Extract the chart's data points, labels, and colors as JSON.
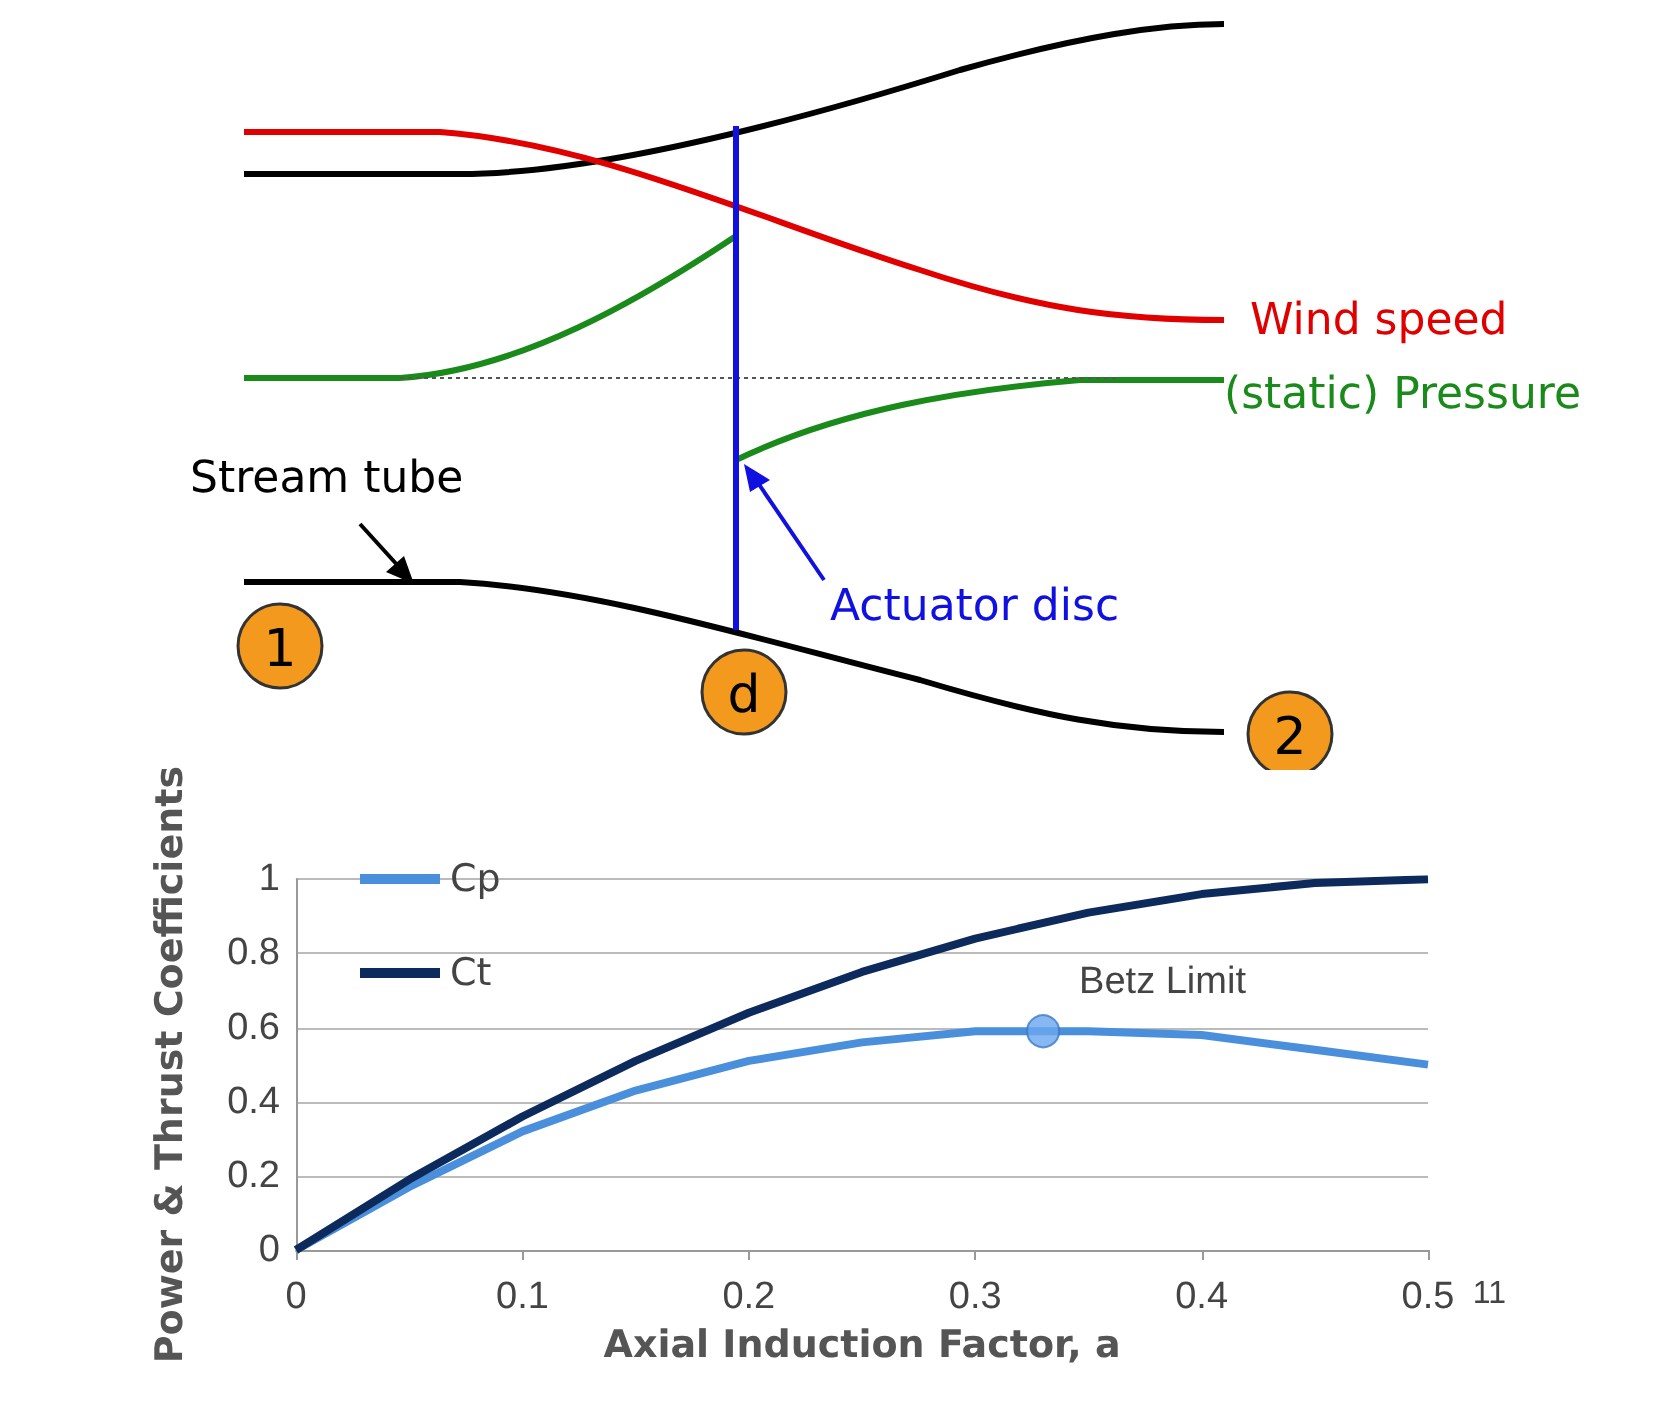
{
  "chart_data": [
    {
      "type": "other",
      "annotations": [
        "Wind speed",
        "(static) Pressure",
        "Stream tube",
        "Actuator disc",
        "1",
        "d",
        "2"
      ]
    },
    {
      "type": "line",
      "xlabel": "Axial Induction Factor, a",
      "ylabel": "Power & Thrust Coefficients",
      "x": [
        0,
        0.05,
        0.1,
        0.15,
        0.2,
        0.25,
        0.3,
        0.35,
        0.4,
        0.45,
        0.5
      ],
      "series": [
        {
          "name": "Cp",
          "color": "#4a8fdc",
          "marker": "none",
          "values": [
            0,
            0.17,
            0.32,
            0.43,
            0.51,
            0.56,
            0.59,
            0.59,
            0.58,
            0.54,
            0.5
          ]
        },
        {
          "name": "Ct",
          "color": "#0d2a5c",
          "marker": "none",
          "values": [
            0,
            0.19,
            0.36,
            0.51,
            0.64,
            0.75,
            0.84,
            0.91,
            0.96,
            0.99,
            1.0
          ]
        },
        {
          "type": "scatter",
          "x": [
            0.33
          ],
          "values": [
            0.59
          ],
          "color": "#6aa6ee",
          "marker": "circle"
        }
      ],
      "xlim": [
        0,
        0.5
      ],
      "xticks": [
        0,
        0.1,
        0.2,
        0.3,
        0.4,
        0.5
      ],
      "ylim": [
        0,
        1
      ],
      "yticks": [
        0,
        0.2,
        0.4,
        0.6,
        0.8,
        1
      ],
      "grid": "y",
      "legend": "top left",
      "annotations": [
        {
          "text": "Betz Limit",
          "x": 0.33,
          "y": 0.59
        },
        "11"
      ]
    }
  ]
}
